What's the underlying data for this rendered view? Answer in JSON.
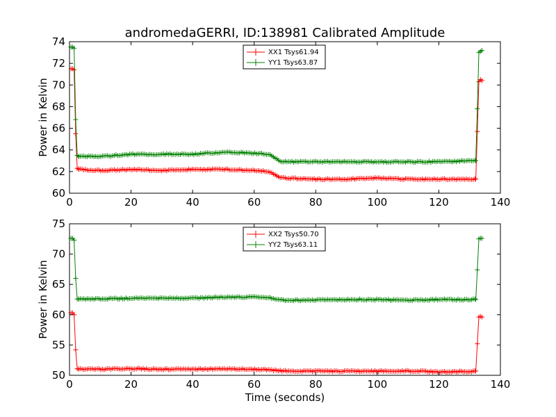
{
  "chart_data": [
    {
      "type": "line",
      "title": "andromedaGERRI, ID:138981 Calibrated Amplitude",
      "xlabel": "",
      "ylabel": "Power in Kelvin",
      "xlim": [
        0,
        140
      ],
      "ylim": [
        60,
        74
      ],
      "xticks": [
        "0",
        "20",
        "40",
        "60",
        "80",
        "100",
        "120",
        "140"
      ],
      "yticks": [
        "60",
        "62",
        "64",
        "66",
        "68",
        "70",
        "72",
        "74"
      ],
      "legend_position": "top-center",
      "series": [
        {
          "name": "XX1 Tsys61.94",
          "color": "#ff0000",
          "marker": "plus",
          "segments": [
            {
              "x": [
                0.5,
                1,
                1.5,
                2,
                2.5,
                3
              ],
              "y": [
                71.5,
                71.5,
                71.4,
                65.5,
                62.3,
                62.2
              ]
            },
            {
              "x": [
                3,
                10,
                20,
                30,
                40,
                50,
                60,
                65,
                68,
                70,
                80,
                90,
                100,
                110,
                120,
                130,
                132
              ],
              "y": [
                62.2,
                62.1,
                62.2,
                62.1,
                62.2,
                62.2,
                62.1,
                62.0,
                61.5,
                61.4,
                61.3,
                61.3,
                61.4,
                61.3,
                61.3,
                61.3,
                61.3
              ]
            },
            {
              "x": [
                132,
                132.5,
                133,
                133.5,
                134
              ],
              "y": [
                61.3,
                65.7,
                70.3,
                70.5,
                70.4
              ]
            }
          ]
        },
        {
          "name": "YY1 Tsys63.87",
          "color": "#008000",
          "marker": "plus",
          "segments": [
            {
              "x": [
                0.5,
                1,
                1.5,
                2,
                2.5,
                3
              ],
              "y": [
                73.5,
                73.5,
                73.4,
                66.8,
                63.5,
                63.4
              ]
            },
            {
              "x": [
                3,
                10,
                20,
                30,
                40,
                50,
                60,
                65,
                68,
                70,
                80,
                90,
                100,
                110,
                120,
                130,
                132
              ],
              "y": [
                63.4,
                63.4,
                63.6,
                63.6,
                63.6,
                63.8,
                63.7,
                63.6,
                63.0,
                62.9,
                62.9,
                62.9,
                62.9,
                62.9,
                62.9,
                63.0,
                63.0
              ]
            },
            {
              "x": [
                132,
                132.5,
                133,
                133.5,
                134
              ],
              "y": [
                63.0,
                67.8,
                73.0,
                73.1,
                73.2
              ]
            }
          ]
        }
      ]
    },
    {
      "type": "line",
      "title": "",
      "xlabel": "Time (seconds)",
      "ylabel": "Power in Kelvin",
      "xlim": [
        0,
        140
      ],
      "ylim": [
        50,
        75
      ],
      "xticks": [
        "0",
        "20",
        "40",
        "60",
        "80",
        "100",
        "120",
        "140"
      ],
      "yticks": [
        "50",
        "55",
        "60",
        "65",
        "70",
        "75"
      ],
      "legend_position": "top-center",
      "series": [
        {
          "name": "XX2 Tsys50.70",
          "color": "#ff0000",
          "marker": "plus",
          "segments": [
            {
              "x": [
                0.5,
                1,
                1.5,
                2,
                2.5,
                3
              ],
              "y": [
                60.3,
                60.3,
                60.0,
                54.2,
                51.1,
                51.0
              ]
            },
            {
              "x": [
                3,
                10,
                20,
                30,
                40,
                50,
                60,
                65,
                68,
                70,
                80,
                90,
                100,
                110,
                120,
                130,
                132
              ],
              "y": [
                51.0,
                51.0,
                51.1,
                51.0,
                51.0,
                51.1,
                51.0,
                50.9,
                50.8,
                50.7,
                50.7,
                50.7,
                50.7,
                50.7,
                50.6,
                50.6,
                50.7
              ]
            },
            {
              "x": [
                132,
                132.5,
                133,
                133.5,
                134
              ],
              "y": [
                50.7,
                55.2,
                59.6,
                59.7,
                59.6
              ]
            }
          ]
        },
        {
          "name": "YY2 Tsys63.11",
          "color": "#008000",
          "marker": "plus",
          "segments": [
            {
              "x": [
                0.5,
                1,
                1.5,
                2,
                2.5,
                3
              ],
              "y": [
                72.6,
                72.6,
                72.3,
                66.0,
                62.6,
                62.6
              ]
            },
            {
              "x": [
                3,
                10,
                20,
                30,
                40,
                50,
                60,
                65,
                68,
                70,
                80,
                90,
                100,
                110,
                120,
                130,
                132
              ],
              "y": [
                62.6,
                62.6,
                62.7,
                62.7,
                62.7,
                62.9,
                62.9,
                62.8,
                62.5,
                62.4,
                62.4,
                62.5,
                62.5,
                62.4,
                62.5,
                62.5,
                62.5
              ]
            },
            {
              "x": [
                132,
                132.5,
                133,
                133.5,
                134
              ],
              "y": [
                62.5,
                67.4,
                72.5,
                72.6,
                72.6
              ]
            }
          ]
        }
      ]
    }
  ]
}
